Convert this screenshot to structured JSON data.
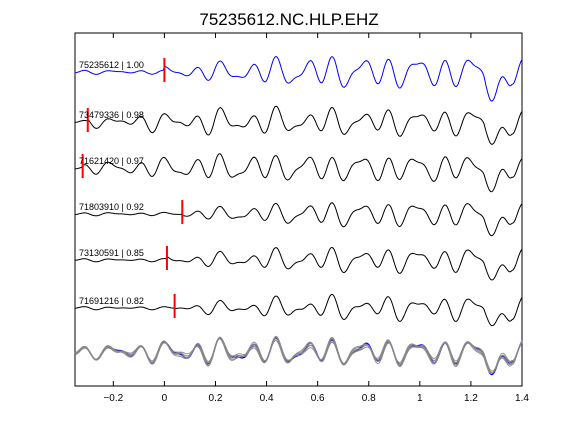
{
  "chart_data": {
    "type": "line",
    "title": "75235612.NC.HLP.EHZ",
    "xlabel": "",
    "ylabel": "",
    "xlim": [
      -0.35,
      1.4
    ],
    "x_ticks": [
      -0.2,
      0,
      0.2,
      0.4,
      0.6,
      0.8,
      1,
      1.2,
      1.4
    ],
    "x_tick_labels": [
      "−0.2",
      "0",
      "0.2",
      "0.4",
      "0.6",
      "0.8",
      "1",
      "1.2",
      "1.4"
    ],
    "grid": false,
    "stack_overlay_label": "",
    "series": [
      {
        "name": "75235612 | 1.00",
        "color": "#0000ff",
        "pick_time": 0.0,
        "amplitude": 1.0
      },
      {
        "name": "73479336 | 0.98",
        "color": "#000000",
        "pick_time": -0.3,
        "amplitude": 0.82
      },
      {
        "name": "71621420 | 0.97",
        "color": "#000000",
        "pick_time": -0.32,
        "amplitude": 0.85
      },
      {
        "name": "71803910 | 0.92",
        "color": "#000000",
        "pick_time": 0.07,
        "amplitude": 0.78
      },
      {
        "name": "73130591 | 0.85",
        "color": "#000000",
        "pick_time": 0.01,
        "amplitude": 0.75
      },
      {
        "name": "71691216 | 0.82",
        "color": "#000000",
        "pick_time": 0.04,
        "amplitude": 0.72
      }
    ],
    "pick_color": "#ff0000",
    "overlay_colors": {
      "reference": "#0000ff",
      "others": "#888888"
    }
  }
}
